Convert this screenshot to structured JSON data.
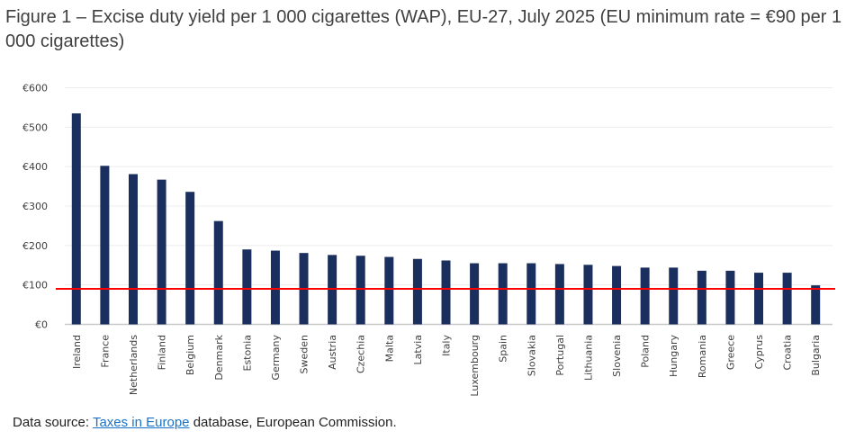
{
  "chart_data": {
    "type": "bar",
    "title": "Figure 1 – Excise duty yield per 1 000 cigarettes (WAP), EU-27, July 2025 (EU minimum rate = €90 per 1 000 cigarettes)",
    "xlabel": "",
    "ylabel": "",
    "ylim": [
      0,
      600
    ],
    "yticks": [
      "€0",
      "€100",
      "€200",
      "€300",
      "€400",
      "€500",
      "€600"
    ],
    "grid": true,
    "categories": [
      "Ireland",
      "France",
      "Netherlands",
      "Finland",
      "Belgium",
      "Denmark",
      "Estonia",
      "Germany",
      "Sweden",
      "Austria",
      "Czechia",
      "Malta",
      "Latvia",
      "Italy",
      "Luxembourg",
      "Spain",
      "Slovakia",
      "Portugal",
      "Lithuania",
      "Slovenia",
      "Poland",
      "Hungary",
      "Romania",
      "Greece",
      "Cyprus",
      "Croatia",
      "Bulgaria"
    ],
    "values": [
      535,
      402,
      381,
      367,
      336,
      262,
      190,
      187,
      181,
      176,
      174,
      171,
      166,
      162,
      155,
      155,
      155,
      153,
      151,
      148,
      144,
      144,
      136,
      136,
      131,
      131,
      99
    ],
    "reference_line": {
      "value": 90,
      "color": "#ff0000"
    },
    "bar_color": "#1b2f5e"
  },
  "source": {
    "prefix": "Data source: ",
    "link": "Taxes in Europe",
    "suffix": " database, European Commission."
  }
}
